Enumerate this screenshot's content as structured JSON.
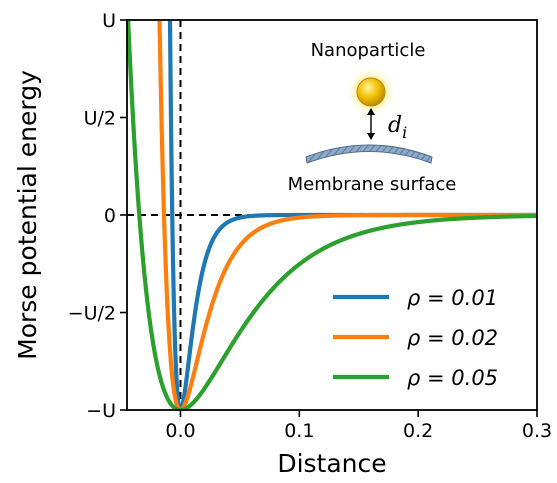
{
  "chart_data": {
    "type": "line",
    "xlabel": "Distance",
    "ylabel": "Morse potential energy",
    "xlim": [
      -0.045,
      0.3
    ],
    "ylim": [
      -1.0,
      1.0
    ],
    "x_ticks": [
      {
        "value": 0.0,
        "label": "0.0"
      },
      {
        "value": 0.1,
        "label": "0.1"
      },
      {
        "value": 0.2,
        "label": "0.2"
      },
      {
        "value": 0.3,
        "label": "0.3"
      }
    ],
    "y_ticks": [
      {
        "value": -1.0,
        "label": "−U"
      },
      {
        "value": -0.5,
        "label": "−U/2"
      },
      {
        "value": 0.0,
        "label": "0"
      },
      {
        "value": 0.5,
        "label": "U/2"
      },
      {
        "value": 1.0,
        "label": "U"
      }
    ],
    "series": [
      {
        "name": "ρ = 0.01",
        "rho": 0.01,
        "color": "#1f77b4"
      },
      {
        "name": "ρ = 0.02",
        "rho": 0.02,
        "color": "#ff7f0e"
      },
      {
        "name": "ρ = 0.05",
        "rho": 0.05,
        "color": "#2ca02c"
      }
    ],
    "reference_lines": [
      {
        "axis": "x",
        "value": 0.0,
        "style": "dashed"
      },
      {
        "axis": "y",
        "value": 0.0,
        "style": "dashed"
      }
    ],
    "legend": {
      "placement": "lower-right"
    },
    "grid": false,
    "inset": {
      "nanoparticle_label": "Nanoparticle",
      "distance_label": "d",
      "distance_subscript": "i",
      "surface_label": "Membrane surface",
      "particle_color": "#f5c400",
      "surface_color": "#6f8fb0"
    }
  }
}
